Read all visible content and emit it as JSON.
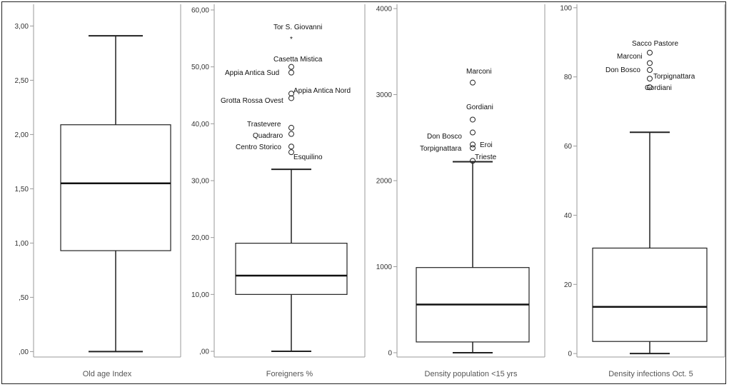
{
  "chart_data": [
    {
      "type": "box",
      "xlabel": "Old age Index",
      "ylim": [
        -0.05,
        3.2
      ],
      "ticks": [
        0,
        0.5,
        1.0,
        1.5,
        2.0,
        2.5,
        3.0
      ],
      "tick_labels": [
        ",00",
        ",50",
        "1,00",
        "1,50",
        "2,00",
        "2,50",
        "3,00"
      ],
      "min": 0.0,
      "q1": 0.93,
      "median": 1.55,
      "q3": 2.09,
      "max": 2.91,
      "outliers": []
    },
    {
      "type": "box",
      "xlabel": "Foreigners %",
      "ylim": [
        -1,
        61
      ],
      "ticks": [
        0,
        10,
        20,
        30,
        40,
        50,
        60
      ],
      "tick_labels": [
        ",00",
        "10,00",
        "20,00",
        "30,00",
        "40,00",
        "50,00",
        "60,00"
      ],
      "min": 0,
      "q1": 10.0,
      "median": 13.3,
      "q3": 19.0,
      "max": 32.0,
      "outliers": [
        {
          "label": "Tor S. Giovanni",
          "value": 55.0,
          "marker": "*"
        },
        {
          "label": "Casetta Mistica",
          "value": 50.0,
          "marker": "o"
        },
        {
          "label": "Appia Antica Sud",
          "value": 49.0,
          "marker": "o"
        },
        {
          "label": "Appia Antica Nord",
          "value": 45.3,
          "marker": "o"
        },
        {
          "label": "Grotta Rossa Ovest",
          "value": 44.5,
          "marker": "o"
        },
        {
          "label": "Trastevere",
          "value": 39.3,
          "marker": "o"
        },
        {
          "label": "Quadraro",
          "value": 38.2,
          "marker": "o"
        },
        {
          "label": "Centro Storico",
          "value": 36.0,
          "marker": "o"
        },
        {
          "label": "Esquilino",
          "value": 35.0,
          "marker": "o"
        }
      ]
    },
    {
      "type": "box",
      "xlabel": "Density population <15 yrs",
      "ylim": [
        -50,
        4050
      ],
      "ticks": [
        0,
        1000,
        2000,
        3000,
        4000
      ],
      "tick_labels": [
        "0",
        "1000",
        "2000",
        "3000",
        "4000"
      ],
      "min": 0,
      "q1": 125,
      "median": 560,
      "q3": 990,
      "max": 2220,
      "outliers": [
        {
          "label": "Marconi",
          "value": 3140,
          "marker": "o"
        },
        {
          "label": "Gordiani",
          "value": 2710,
          "marker": "o"
        },
        {
          "label": "Don Bosco",
          "value": 2560,
          "marker": "o"
        },
        {
          "label": "Eroi",
          "value": 2420,
          "marker": "o"
        },
        {
          "label": "Torpignattara",
          "value": 2380,
          "marker": "o"
        },
        {
          "label": "Trieste",
          "value": 2230,
          "marker": "o"
        }
      ]
    },
    {
      "type": "box",
      "xlabel": "Density infections Oct. 5",
      "ylim": [
        -1,
        101
      ],
      "ticks": [
        0,
        20,
        40,
        60,
        80,
        100
      ],
      "tick_labels": [
        "0",
        "20",
        "40",
        "60",
        "80",
        "100"
      ],
      "min": 0,
      "q1": 3.5,
      "median": 13.5,
      "q3": 30.5,
      "max": 64.0,
      "outliers": [
        {
          "label": "Sacco Pastore",
          "value": 87.0,
          "marker": "o"
        },
        {
          "label": "Marconi",
          "value": 84.0,
          "marker": "o"
        },
        {
          "label": "Don Bosco",
          "value": 82.0,
          "marker": "o"
        },
        {
          "label": "Torpignattara",
          "value": 79.5,
          "marker": "o"
        },
        {
          "label": "Gordiani",
          "value": 77.0,
          "marker": "o"
        }
      ]
    }
  ]
}
